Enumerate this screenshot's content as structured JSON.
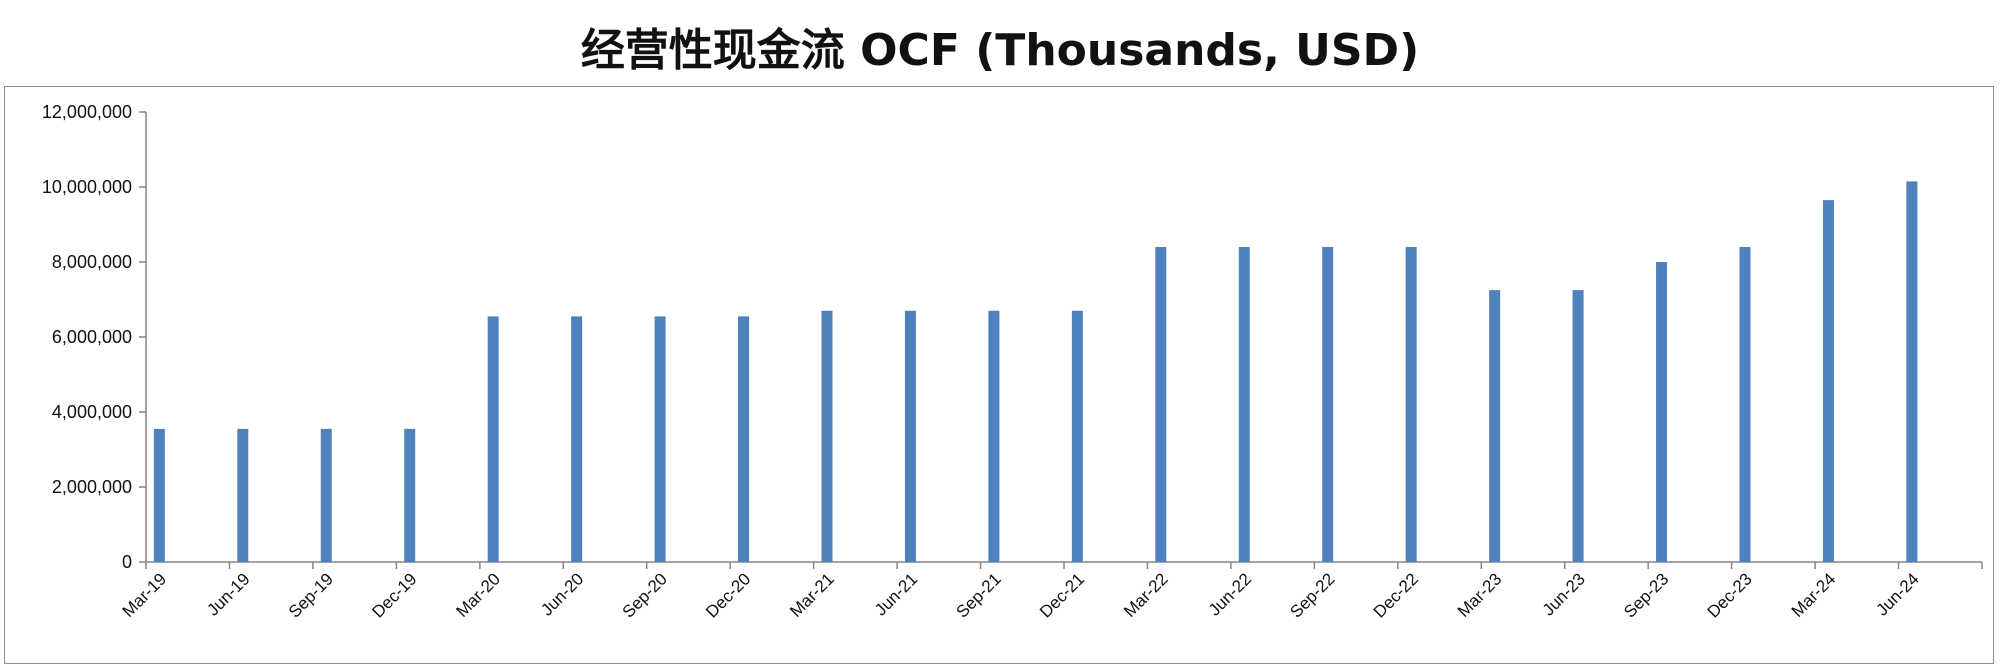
{
  "chart_data": {
    "type": "bar",
    "title": "经营性现金流 OCF (Thousands, USD)",
    "xlabel": "",
    "ylabel": "",
    "ylim": [
      0,
      12000000
    ],
    "yticks": [
      0,
      2000000,
      4000000,
      6000000,
      8000000,
      10000000,
      12000000
    ],
    "ytick_labels": [
      "0",
      "2,000,000",
      "4,000,000",
      "6,000,000",
      "8,000,000",
      "10,000,000",
      "12,000,000"
    ],
    "grid": false,
    "legend": "none",
    "bar_color": "#4f81bd",
    "categories": [
      "Mar-19",
      "Jun-19",
      "Sep-19",
      "Dec-19",
      "Mar-20",
      "Jun-20",
      "Sep-20",
      "Dec-20",
      "Mar-21",
      "Jun-21",
      "Sep-21",
      "Dec-21",
      "Mar-22",
      "Jun-22",
      "Sep-22",
      "Dec-22",
      "Mar-23",
      "Jun-23",
      "Sep-23",
      "Dec-23",
      "Mar-24",
      "Jun-24"
    ],
    "values": [
      3550000,
      3550000,
      3550000,
      3550000,
      6550000,
      6550000,
      6550000,
      6550000,
      6700000,
      6700000,
      6700000,
      6700000,
      8400000,
      8400000,
      8400000,
      8400000,
      7250000,
      7250000,
      8000000,
      8400000,
      9650000,
      10150000
    ]
  }
}
